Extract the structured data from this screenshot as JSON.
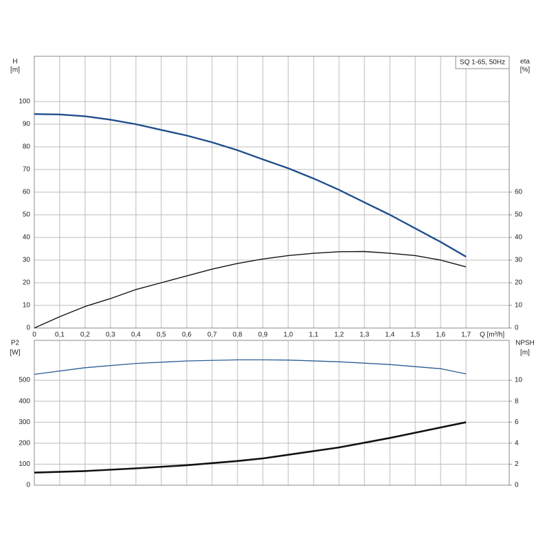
{
  "chart_data": [
    {
      "type": "line",
      "title": "SQ 1-65, 50Hz",
      "x_label": "Q [m³/h]",
      "y_label": "H",
      "y_unit": "[m]",
      "y2_label": "eta",
      "y2_unit": "[%]",
      "x": [
        0,
        0.1,
        0.2,
        0.3,
        0.4,
        0.5,
        0.6,
        0.7,
        0.8,
        0.9,
        1.0,
        1.1,
        1.2,
        1.3,
        1.4,
        1.5,
        1.6,
        1.7
      ],
      "series": [
        {
          "name": "H",
          "color": "#1f4e8c",
          "axis": "y",
          "values": [
            94.5,
            94.3,
            93.5,
            92,
            90,
            87.5,
            85,
            82,
            78.5,
            74.5,
            70.5,
            66,
            61,
            55.5,
            50,
            44,
            38,
            31.5
          ]
        },
        {
          "name": "eta",
          "color": "#111111",
          "axis": "y2",
          "values": [
            0,
            5,
            9.5,
            13,
            17,
            20,
            23,
            26,
            28.5,
            30.5,
            32,
            33,
            33.7,
            33.8,
            33,
            32,
            30,
            27
          ]
        }
      ],
      "xlim": [
        0,
        1.87
      ],
      "xticks": [
        0,
        {
          "value": 0.1,
          "label": "0,1"
        },
        {
          "value": 0.2,
          "label": "0,2"
        },
        {
          "value": 0.3,
          "label": "0,3"
        },
        {
          "value": 0.4,
          "label": "0,4"
        },
        {
          "value": 0.5,
          "label": "0,5"
        },
        {
          "value": 0.6,
          "label": "0,6"
        },
        {
          "value": 0.7,
          "label": "0,7"
        },
        {
          "value": 0.8,
          "label": "0,8"
        },
        {
          "value": 0.9,
          "label": "0,9"
        },
        {
          "value": 1.0,
          "label": "1,0"
        },
        {
          "value": 1.1,
          "label": "1,1"
        },
        {
          "value": 1.2,
          "label": "1,2"
        },
        {
          "value": 1.3,
          "label": "1,3"
        },
        {
          "value": 1.4,
          "label": "1,4"
        },
        {
          "value": 1.5,
          "label": "1,5"
        },
        {
          "value": 1.6,
          "label": "1,6"
        },
        {
          "value": 1.7,
          "label": "1,7"
        }
      ],
      "ylim": [
        0,
        120
      ],
      "yticks": [
        0,
        10,
        20,
        30,
        40,
        50,
        60,
        70,
        80,
        90,
        100
      ],
      "y2lim": [
        0,
        120
      ],
      "y2ticks": [
        0,
        10,
        20,
        30,
        40,
        50,
        60
      ],
      "grid": true
    },
    {
      "type": "line",
      "y_label": "P2",
      "y_unit": "[W]",
      "y2_label": "NPSH",
      "y2_unit": "[m]",
      "x": [
        0,
        0.2,
        0.4,
        0.6,
        0.8,
        0.9,
        1.0,
        1.2,
        1.4,
        1.6,
        1.7
      ],
      "series": [
        {
          "name": "P2",
          "color": "#2a5a94",
          "axis": "y",
          "values": [
            528,
            560,
            580,
            592,
            597,
            597,
            596,
            588,
            575,
            555,
            530
          ]
        },
        {
          "name": "NPSH",
          "color": "#111111",
          "axis": "y2",
          "values": [
            1.2,
            1.35,
            1.6,
            1.9,
            2.3,
            2.55,
            2.9,
            3.6,
            4.5,
            5.5,
            6.0
          ]
        }
      ],
      "xlim": [
        0,
        1.87
      ],
      "ylim": [
        0,
        690
      ],
      "yticks": [
        0,
        100,
        200,
        300,
        400,
        500
      ],
      "y2lim": [
        0,
        13.8
      ],
      "y2ticks": [
        0,
        2,
        4,
        6,
        8,
        10
      ],
      "grid": true
    }
  ]
}
